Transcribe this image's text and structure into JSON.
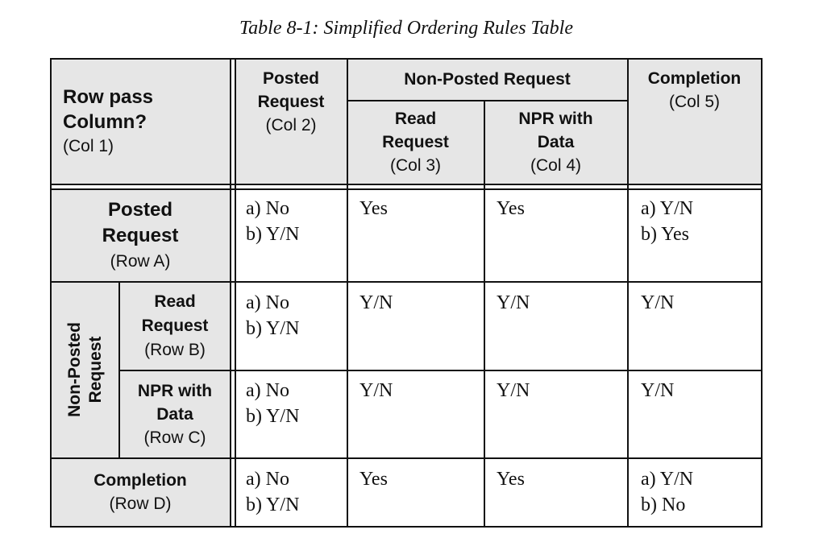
{
  "caption": "Table 8-1: Simplified Ordering Rules Table",
  "corner": {
    "line1": "Row pass",
    "line2": "Column?",
    "sub": "(Col 1)"
  },
  "columns": {
    "posted": {
      "line1": "Posted",
      "line2": "Request",
      "sub": "(Col 2)"
    },
    "non_posted": "Non-Posted Request",
    "read": {
      "line1": "Read",
      "line2": "Request",
      "sub": "(Col 3)"
    },
    "npr_data": {
      "line1": "NPR with",
      "line2": "Data",
      "sub": "(Col 4)"
    },
    "completion": {
      "line1": "Completion",
      "sub": "(Col 5)"
    }
  },
  "rows": {
    "posted": {
      "line1": "Posted",
      "line2": "Request",
      "sub": "(Row A)"
    },
    "non_posted_group": {
      "line1": "Non-Posted",
      "line2": "Request"
    },
    "read": {
      "line1": "Read",
      "line2": "Request",
      "sub": "(Row B)"
    },
    "npr_data": {
      "line1": "NPR with",
      "line2": "Data",
      "sub": "(Row C)"
    },
    "completion": {
      "line1": "Completion",
      "sub": "(Row D)"
    }
  },
  "cells": {
    "a": {
      "c2": [
        "a) No",
        "b) Y/N"
      ],
      "c3": [
        "Yes"
      ],
      "c4": [
        "Yes"
      ],
      "c5": [
        "a) Y/N",
        "b) Yes"
      ]
    },
    "b": {
      "c2": [
        "a) No",
        "b) Y/N"
      ],
      "c3": [
        "Y/N"
      ],
      "c4": [
        "Y/N"
      ],
      "c5": [
        "Y/N"
      ]
    },
    "c": {
      "c2": [
        "a) No",
        "b) Y/N"
      ],
      "c3": [
        "Y/N"
      ],
      "c4": [
        "Y/N"
      ],
      "c5": [
        "Y/N"
      ]
    },
    "d": {
      "c2": [
        "a) No",
        "b) Y/N"
      ],
      "c3": [
        "Yes"
      ],
      "c4": [
        "Yes"
      ],
      "c5": [
        "a) Y/N",
        "b) No"
      ]
    }
  }
}
